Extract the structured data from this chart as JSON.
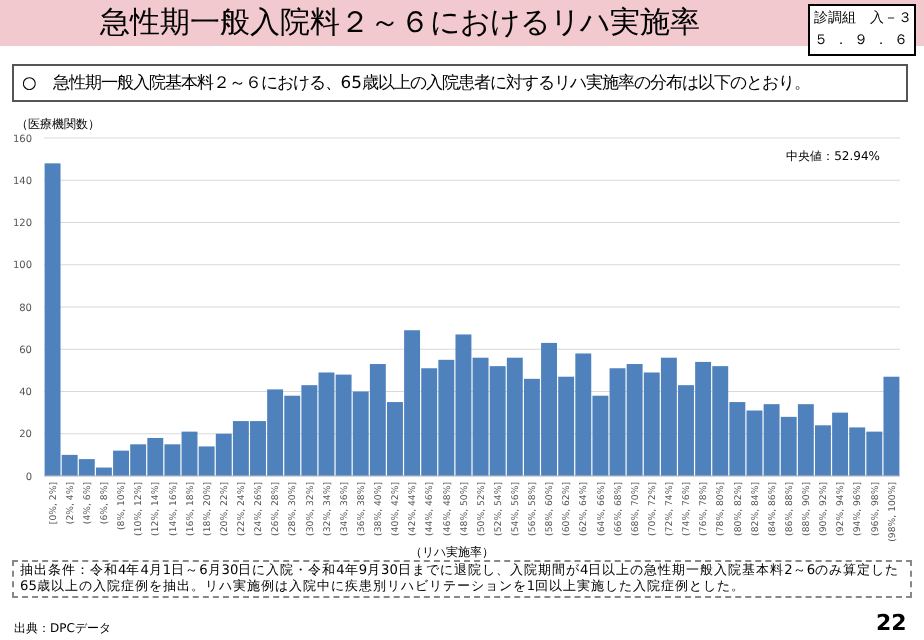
{
  "chart_data": {
    "type": "bar",
    "title": "急性期一般入院料２～６におけるリハ実施率",
    "subtitle": "○　急性期一般入院基本料２～６における、65歳以上の入院患者に対するリハ実施率の分布は以下のとおり。",
    "ylabel": "（医療機関数）",
    "xlabel": "（リハ実施率）",
    "annotations": [
      "診調組　入－３",
      "５．９．６",
      "中央値：52.94%",
      "抽出条件：令和4年4月1日～6月30日に入院・令和4年9月30日までに退院し、入院期間が4日以上の急性期一般入院基本料2～6のみ算定した65歳以上の入院症例を抽出。リハ実施例は入院中に疾患別リハビリテーションを1回以上実施した入院症例とした。",
      "出典：DPCデータ",
      "22"
    ],
    "categories": [
      "[0%, 2%]",
      "(2%, 4%]",
      "(4%, 6%]",
      "(6%, 8%]",
      "(8%, 10%]",
      "(10%, 12%]",
      "(12%, 14%]",
      "(14%, 16%]",
      "(16%, 18%]",
      "(18%, 20%]",
      "(20%, 22%]",
      "(22%, 24%]",
      "(24%, 26%]",
      "(26%, 28%]",
      "(28%, 30%]",
      "(30%, 32%]",
      "(32%, 34%]",
      "(34%, 36%]",
      "(36%, 38%]",
      "(38%, 40%]",
      "(40%, 42%]",
      "(42%, 44%]",
      "(44%, 46%]",
      "(46%, 48%]",
      "(48%, 50%]",
      "(50%, 52%]",
      "(52%, 54%]",
      "(54%, 56%]",
      "(56%, 58%]",
      "(58%, 60%]",
      "(60%, 62%]",
      "(62%, 64%]",
      "(64%, 66%]",
      "(66%, 68%]",
      "(68%, 70%]",
      "(70%, 72%]",
      "(72%, 74%]",
      "(74%, 76%]",
      "(76%, 78%]",
      "(78%, 80%]",
      "(80%, 82%]",
      "(82%, 84%]",
      "(84%, 86%]",
      "(86%, 88%]",
      "(88%, 90%]",
      "(90%, 92%]",
      "(92%, 94%]",
      "(94%, 96%]",
      "(96%, 98%]",
      "(98%, 100%]"
    ],
    "values": [
      148,
      10,
      8,
      4,
      12,
      15,
      18,
      15,
      21,
      14,
      20,
      26,
      26,
      41,
      38,
      43,
      49,
      48,
      40,
      53,
      35,
      69,
      51,
      55,
      67,
      56,
      52,
      56,
      46,
      63,
      47,
      58,
      38,
      51,
      53,
      49,
      56,
      43,
      54,
      52,
      35,
      31,
      34,
      28,
      34,
      24,
      30,
      23,
      21,
      47
    ],
    "color": "#4f81bd",
    "ylim": [
      0,
      160
    ],
    "yticks": [
      0,
      20,
      40,
      60,
      80,
      100,
      120,
      140,
      160
    ],
    "grid": "y"
  }
}
